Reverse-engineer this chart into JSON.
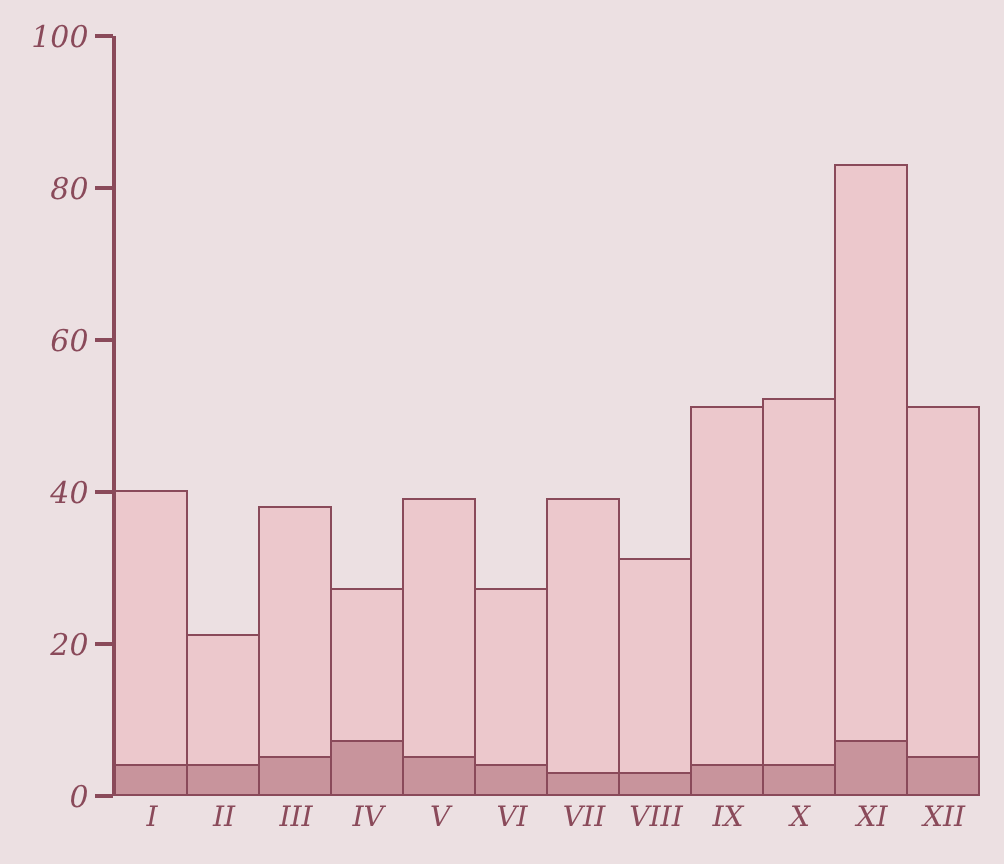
{
  "chart_data": {
    "type": "bar",
    "stacked": true,
    "categories": [
      "I",
      "II",
      "III",
      "IV",
      "V",
      "VI",
      "VII",
      "VIII",
      "IX",
      "X",
      "XI",
      "XII"
    ],
    "series": [
      {
        "color": "#c8949c",
        "values": [
          4,
          4,
          5,
          7,
          5,
          4,
          3,
          3,
          4,
          4,
          7,
          5
        ]
      },
      {
        "color": "#ecc8cc",
        "values": [
          36,
          17,
          33,
          20,
          34,
          23,
          36,
          28,
          47,
          48,
          76,
          46
        ]
      }
    ],
    "ylim": [
      0,
      100
    ],
    "yticks": [
      0,
      20,
      40,
      60,
      80,
      100
    ],
    "grid": false
  }
}
